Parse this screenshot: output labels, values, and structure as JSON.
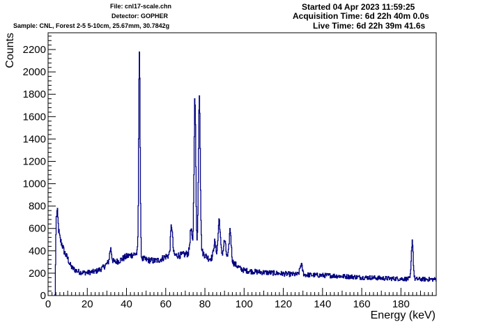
{
  "header": {
    "file": "File: cnl17-scale.chn",
    "detector": "Detector: GOPHER",
    "sample": "Sample: CNL, Forest 2-5 5-10cm, 25.67mm, 30.7842g",
    "started": "Started 04 Apr 2023 11:59:25",
    "acquisition_time": "Acquisition Time: 6d 22h 40m 0.0s",
    "live_time": "Live Time: 6d 22h 39m 41.6s"
  },
  "chart_data": {
    "type": "histogram-step",
    "title": "",
    "xlabel": "Energy (keV)",
    "ylabel": "Counts",
    "xlim": [
      0,
      198
    ],
    "ylim": [
      0,
      2350
    ],
    "x_ticks": [
      0,
      20,
      40,
      60,
      80,
      100,
      120,
      140,
      160,
      180
    ],
    "y_ticks": [
      0,
      200,
      400,
      600,
      800,
      1000,
      1200,
      1400,
      1600,
      1800,
      2000,
      2200
    ],
    "grid": false,
    "line_color": "#00007f",
    "background_points": [
      [
        3.5,
        0
      ],
      [
        4,
        650
      ],
      [
        4.6,
        700
      ],
      [
        5.2,
        560
      ],
      [
        6,
        500
      ],
      [
        7,
        460
      ],
      [
        8,
        400
      ],
      [
        9,
        360
      ],
      [
        10,
        330
      ],
      [
        11,
        280
      ],
      [
        12,
        250
      ],
      [
        14,
        225
      ],
      [
        16,
        210
      ],
      [
        18,
        205
      ],
      [
        20,
        205
      ],
      [
        22,
        210
      ],
      [
        24,
        215
      ],
      [
        26,
        230
      ],
      [
        28,
        250
      ],
      [
        30,
        285
      ],
      [
        32,
        310
      ],
      [
        34,
        300
      ],
      [
        36,
        310
      ],
      [
        38,
        330
      ],
      [
        40,
        350
      ],
      [
        42,
        360
      ],
      [
        44,
        370
      ],
      [
        46,
        380
      ],
      [
        48,
        330
      ],
      [
        50,
        320
      ],
      [
        52,
        315
      ],
      [
        54,
        310
      ],
      [
        56,
        315
      ],
      [
        58,
        330
      ],
      [
        60,
        350
      ],
      [
        62,
        360
      ],
      [
        64,
        360
      ],
      [
        66,
        360
      ],
      [
        68,
        360
      ],
      [
        70,
        370
      ],
      [
        72,
        380
      ],
      [
        74,
        400
      ],
      [
        76,
        420
      ],
      [
        78,
        400
      ],
      [
        80,
        360
      ],
      [
        82,
        330
      ],
      [
        84,
        340
      ],
      [
        86,
        380
      ],
      [
        88,
        380
      ],
      [
        90,
        360
      ],
      [
        92,
        330
      ],
      [
        94,
        300
      ],
      [
        96,
        270
      ],
      [
        98,
        240
      ],
      [
        100,
        225
      ],
      [
        104,
        215
      ],
      [
        108,
        210
      ],
      [
        112,
        205
      ],
      [
        116,
        200
      ],
      [
        120,
        195
      ],
      [
        124,
        190
      ],
      [
        128,
        188
      ],
      [
        132,
        185
      ],
      [
        136,
        182
      ],
      [
        140,
        180
      ],
      [
        145,
        178
      ],
      [
        150,
        172
      ],
      [
        155,
        168
      ],
      [
        160,
        162
      ],
      [
        165,
        160
      ],
      [
        170,
        155
      ],
      [
        175,
        152
      ],
      [
        180,
        150
      ],
      [
        185,
        148
      ],
      [
        190,
        146
      ],
      [
        195,
        145
      ],
      [
        198,
        145
      ]
    ],
    "peaks": [
      {
        "x": 4.7,
        "height": 60,
        "sigma": 0.6
      },
      {
        "x": 31.8,
        "height": 110,
        "sigma": 0.5
      },
      {
        "x": 46.5,
        "height": 1880,
        "sigma": 0.35
      },
      {
        "x": 62.9,
        "height": 270,
        "sigma": 0.5
      },
      {
        "x": 72.8,
        "height": 200,
        "sigma": 0.5
      },
      {
        "x": 74.8,
        "height": 1340,
        "sigma": 0.45
      },
      {
        "x": 77.1,
        "height": 1410,
        "sigma": 0.45
      },
      {
        "x": 84.8,
        "height": 120,
        "sigma": 0.5
      },
      {
        "x": 87.2,
        "height": 300,
        "sigma": 0.5
      },
      {
        "x": 90.0,
        "height": 130,
        "sigma": 0.5
      },
      {
        "x": 92.8,
        "height": 270,
        "sigma": 0.5
      },
      {
        "x": 129.0,
        "height": 90,
        "sigma": 0.6
      },
      {
        "x": 185.7,
        "height": 350,
        "sigma": 0.45
      }
    ]
  }
}
